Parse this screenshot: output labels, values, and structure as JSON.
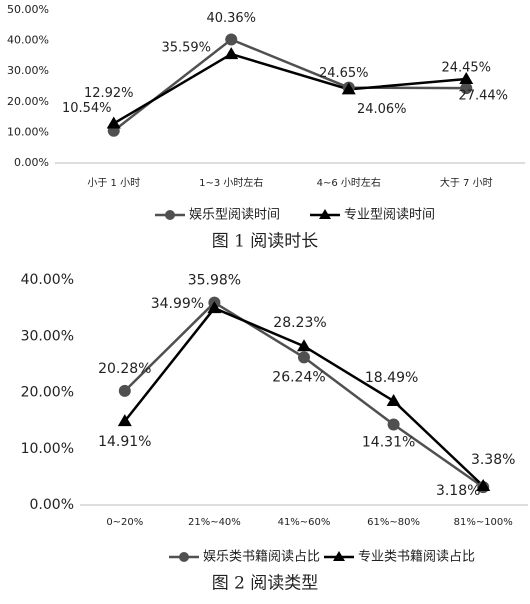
{
  "chart_data": [
    {
      "type": "line",
      "title": "图 1 阅读时长",
      "categories": [
        "小于 1 小时",
        "1~3 小时左右",
        "4~6 小时左右",
        "大于 7 小时"
      ],
      "series": [
        {
          "name": "娱乐型阅读时间",
          "color": "#505050",
          "marker": "circle",
          "values": [
            10.54,
            40.36,
            24.65,
            24.45
          ],
          "value_labels": [
            "10.54%",
            "40.36%",
            "24.65%",
            "24.45%"
          ]
        },
        {
          "name": "专业型阅读时间",
          "color": "#000000",
          "marker": "triangle",
          "values": [
            12.92,
            35.59,
            24.06,
            27.44
          ],
          "value_labels": [
            "12.92%",
            "35.59%",
            "24.06%",
            "27.44%"
          ]
        }
      ],
      "ylim": [
        0,
        50
      ],
      "yticks": [
        {
          "value": 0,
          "label": "0.00%"
        },
        {
          "value": 10,
          "label": "10.00%"
        },
        {
          "value": 20,
          "label": "20.00%"
        },
        {
          "value": 30,
          "label": "30.00%"
        },
        {
          "value": 40,
          "label": "40.00%"
        },
        {
          "value": 50,
          "label": "50.00%"
        }
      ],
      "grid": false,
      "legend": "bottom"
    },
    {
      "type": "line",
      "title": "图 2 阅读类型",
      "categories": [
        "0~20%",
        "21%~40%",
        "41%~60%",
        "61%~80%",
        "81%~100%"
      ],
      "series": [
        {
          "name": "娱乐类书籍阅读占比",
          "color": "#505050",
          "marker": "circle",
          "values": [
            20.28,
            35.98,
            26.24,
            14.31,
            3.18
          ],
          "value_labels": [
            "20.28%",
            "35.98%",
            "26.24%",
            "14.31%",
            "3.18%"
          ]
        },
        {
          "name": "专业类书籍阅读占比",
          "color": "#000000",
          "marker": "triangle",
          "values": [
            14.91,
            34.99,
            28.23,
            18.49,
            3.38
          ],
          "value_labels": [
            "14.91%",
            "34.99%",
            "28.23%",
            "18.49%",
            "3.38%"
          ]
        }
      ],
      "ylim": [
        0,
        40
      ],
      "yticks": [
        {
          "value": 0,
          "label": "0.00%"
        },
        {
          "value": 10,
          "label": "10.00%"
        },
        {
          "value": 20,
          "label": "20.00%"
        },
        {
          "value": 30,
          "label": "30.00%"
        },
        {
          "value": 40,
          "label": "40.00%"
        }
      ],
      "grid": false,
      "legend": "bottom"
    }
  ]
}
